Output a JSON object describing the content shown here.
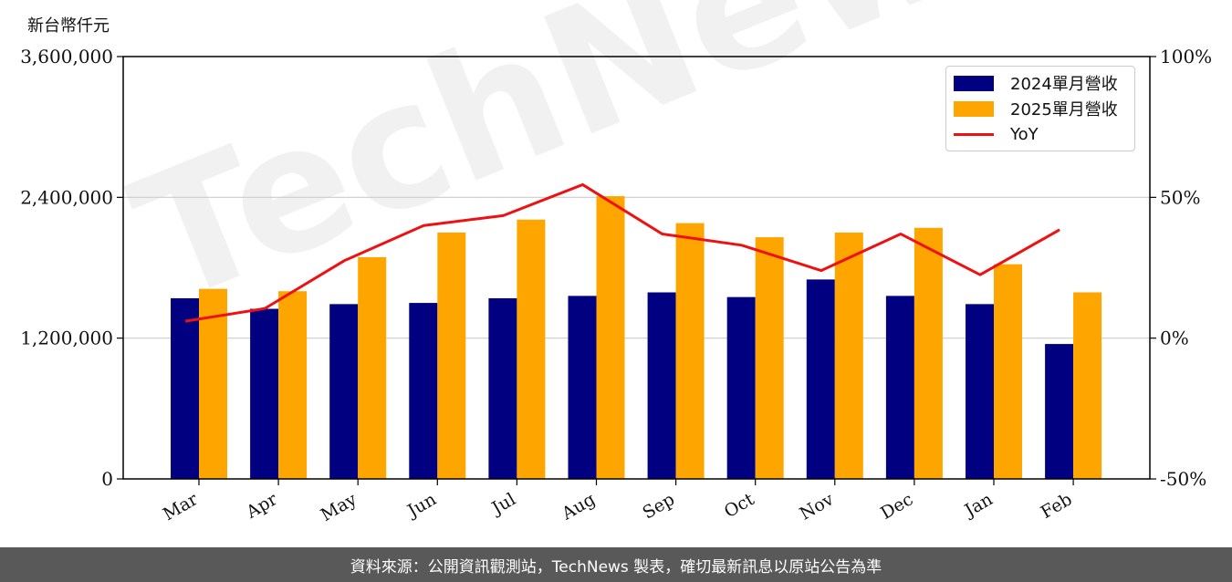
{
  "y_unit_label": "新台幣仟元",
  "footer_text": "資料來源：公開資訊觀測站，TechNews 製表，確切最新訊息以原站公告為準",
  "watermark": "TechNews",
  "colors": {
    "series_2024": "#000080",
    "series_2025": "#FFA500",
    "yoy": "#EE1111",
    "grid": "#cccccc"
  },
  "chart_data": {
    "type": "bar",
    "categories": [
      "Mar",
      "Apr",
      "May",
      "Jun",
      "Jul",
      "Aug",
      "Sep",
      "Oct",
      "Nov",
      "Dec",
      "Jan",
      "Feb"
    ],
    "series": [
      {
        "name": "2024單月營收",
        "values": [
          1540000,
          1450000,
          1490000,
          1500000,
          1540000,
          1560000,
          1590000,
          1550000,
          1700000,
          1560000,
          1490000,
          1150000
        ]
      },
      {
        "name": "2025單月營收",
        "values": [
          1620000,
          1600000,
          1890000,
          2100000,
          2210000,
          2410000,
          2180000,
          2060000,
          2100000,
          2140000,
          1830000,
          1590000
        ]
      }
    ],
    "line": {
      "name": "YoY",
      "values": [
        6,
        10.5,
        27.5,
        40,
        43.5,
        54.5,
        37,
        33,
        24,
        37,
        22.5,
        38.5
      ]
    },
    "ylim": [
      0,
      3600000
    ],
    "yticks": [
      "0",
      "1,200,000",
      "2,400,000",
      "3,600,000"
    ],
    "y2lim": [
      -50,
      100
    ],
    "y2ticks": [
      "-50%",
      "0%",
      "50%",
      "100%"
    ],
    "grid": true,
    "legend": "top-right"
  }
}
